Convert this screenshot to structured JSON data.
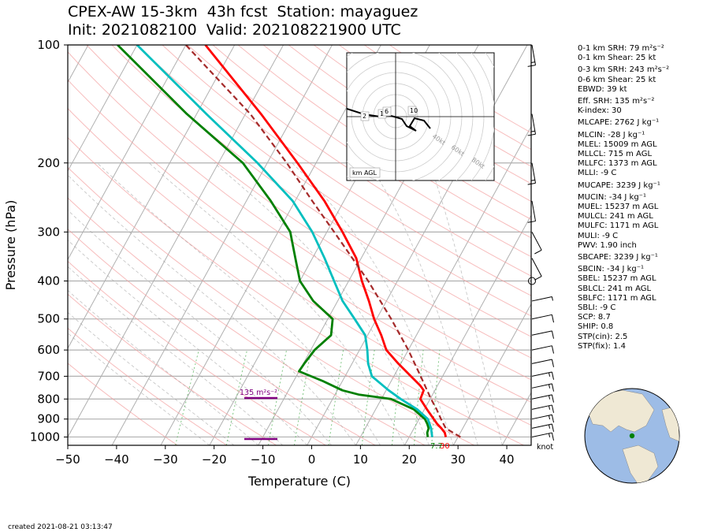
{
  "title_line1": "CPEX-AW 15-3km  43h fcst  Station: mayaguez",
  "title_line2": "Init: 2021082100  Valid: 202108221900 UTC",
  "created": "created 2021-08-21 03:13:47",
  "chart_data": {
    "type": "skew-t log-p sounding",
    "xlabel": "Temperature (C)",
    "ylabel": "Pressure (hPa)",
    "x_ticks": [
      -50,
      -40,
      -30,
      -20,
      -10,
      0,
      10,
      20,
      30,
      40
    ],
    "y_ticks": [
      100,
      200,
      300,
      400,
      500,
      600,
      700,
      800,
      900,
      1000
    ],
    "xlim": [
      -50,
      45
    ],
    "ylim": [
      1050,
      100
    ],
    "y_scale": "log",
    "grid": true,
    "surface_temp_label": "30",
    "surface_dewpoint_label": "7.7",
    "srh_bar_label": "135 m²s⁻²",
    "wind_units_label": "knot",
    "series": [
      {
        "role": "temperature",
        "color": "#ff0000",
        "values": [
          [
            1000,
            27.5
          ],
          [
            975,
            26.8
          ],
          [
            950,
            25.6
          ],
          [
            925,
            24.2
          ],
          [
            900,
            23.0
          ],
          [
            850,
            20.5
          ],
          [
            800,
            18.0
          ],
          [
            760,
            17.7
          ],
          [
            740,
            16.5
          ],
          [
            700,
            13.5
          ],
          [
            650,
            9.5
          ],
          [
            600,
            5.5
          ],
          [
            550,
            2.8
          ],
          [
            500,
            -0.5
          ],
          [
            450,
            -3.6
          ],
          [
            400,
            -7.3
          ],
          [
            350,
            -11.0
          ],
          [
            300,
            -16.8
          ],
          [
            250,
            -24.0
          ],
          [
            200,
            -33.8
          ],
          [
            150,
            -46.8
          ],
          [
            100,
            -66.0
          ]
        ]
      },
      {
        "role": "dewpoint",
        "color": "#008000",
        "values": [
          [
            1000,
            23.8
          ],
          [
            975,
            23.2
          ],
          [
            950,
            23.0
          ],
          [
            925,
            22.2
          ],
          [
            900,
            21.2
          ],
          [
            850,
            17.8
          ],
          [
            800,
            12.0
          ],
          [
            780,
            5.0
          ],
          [
            760,
            1.0
          ],
          [
            720,
            -4.0
          ],
          [
            680,
            -10.0
          ],
          [
            650,
            -9.8
          ],
          [
            600,
            -9.2
          ],
          [
            550,
            -7.5
          ],
          [
            500,
            -9.0
          ],
          [
            450,
            -15.0
          ],
          [
            400,
            -20.0
          ],
          [
            350,
            -23.5
          ],
          [
            300,
            -27.5
          ],
          [
            250,
            -35.0
          ],
          [
            200,
            -45.0
          ],
          [
            150,
            -62.0
          ],
          [
            100,
            -84.0
          ]
        ]
      },
      {
        "role": "wet-bulb",
        "color": "#00bfbf",
        "values": [
          [
            1000,
            24.7
          ],
          [
            950,
            23.5
          ],
          [
            900,
            21.8
          ],
          [
            850,
            18.5
          ],
          [
            800,
            14.0
          ],
          [
            760,
            10.5
          ],
          [
            700,
            5.5
          ],
          [
            650,
            3.3
          ],
          [
            600,
            1.6
          ],
          [
            550,
            -0.5
          ],
          [
            500,
            -4.5
          ],
          [
            450,
            -9.0
          ],
          [
            400,
            -13.0
          ],
          [
            350,
            -17.5
          ],
          [
            300,
            -23.0
          ],
          [
            250,
            -30.5
          ],
          [
            200,
            -42.0
          ],
          [
            150,
            -58.0
          ],
          [
            100,
            -80.0
          ]
        ]
      },
      {
        "role": "parcel",
        "color": "#a52a2a",
        "style": "dashed",
        "values": [
          [
            1000,
            30.5
          ],
          [
            950,
            26.5
          ],
          [
            900,
            24.5
          ],
          [
            850,
            22.5
          ],
          [
            800,
            20.2
          ],
          [
            700,
            15.5
          ],
          [
            600,
            10.0
          ],
          [
            500,
            3.0
          ],
          [
            400,
            -6.0
          ],
          [
            300,
            -18.5
          ],
          [
            250,
            -26.5
          ],
          [
            200,
            -36.0
          ],
          [
            150,
            -49.0
          ],
          [
            100,
            -70.0
          ]
        ]
      }
    ],
    "wind_barbs": [
      {
        "p": 1000,
        "speed": 15
      },
      {
        "p": 950,
        "speed": 15
      },
      {
        "p": 900,
        "speed": 15
      },
      {
        "p": 850,
        "speed": 15
      },
      {
        "p": 800,
        "speed": 15
      },
      {
        "p": 750,
        "speed": 15
      },
      {
        "p": 700,
        "speed": 15
      },
      {
        "p": 650,
        "speed": 10
      },
      {
        "p": 600,
        "speed": 10
      },
      {
        "p": 550,
        "speed": 10
      },
      {
        "p": 500,
        "speed": 10
      },
      {
        "p": 450,
        "speed": 5
      },
      {
        "p": 400,
        "speed": 0
      },
      {
        "p": 350,
        "speed": 10
      },
      {
        "p": 300,
        "speed": 10
      },
      {
        "p": 250,
        "speed": 10
      },
      {
        "p": 200,
        "speed": 15
      },
      {
        "p": 150,
        "speed": 15
      },
      {
        "p": 100,
        "speed": 15
      }
    ],
    "hodograph": {
      "ring_labels": [
        "40kt",
        "60kt",
        "80kt"
      ],
      "box_label": "km AGL",
      "height_labels": [
        "2",
        "1",
        "6",
        "10"
      ]
    }
  },
  "parameters": [
    "0-1 km SRH: 79 m²s⁻²",
    "0-1 km Shear: 25 kt",
    "0-3 km SRH: 243 m²s⁻²",
    "0-6 km Shear: 25 kt",
    "EBWD: 39 kt",
    "Eff. SRH: 135 m²s⁻²",
    "K-index: 30",
    "MLCAPE: 2762 J kg⁻¹",
    "MLCIN: -28 J kg⁻¹",
    "MLEL: 15009 m AGL",
    "MLLCL: 715 m AGL",
    "MLLFC: 1373 m AGL",
    "MLLI: -9 C",
    "MUCAPE: 3239 J kg⁻¹",
    "MUCIN: -34 J kg⁻¹",
    "MUEL: 15237 m AGL",
    "MULCL: 241 m AGL",
    "MULFC: 1171 m AGL",
    "MULI: -9 C",
    "PWV: 1.90 inch",
    "SBCAPE: 3239 J kg⁻¹",
    "SBCIN: -34 J kg⁻¹",
    "SBEL: 15237 m AGL",
    "SBLCL: 241 m AGL",
    "SBLFC: 1171 m AGL",
    "SBLI: -9 C",
    "SCP: 8.7",
    "SHIP: 0.8",
    "STP(cin): 2.5",
    "STP(fix): 1.4"
  ]
}
